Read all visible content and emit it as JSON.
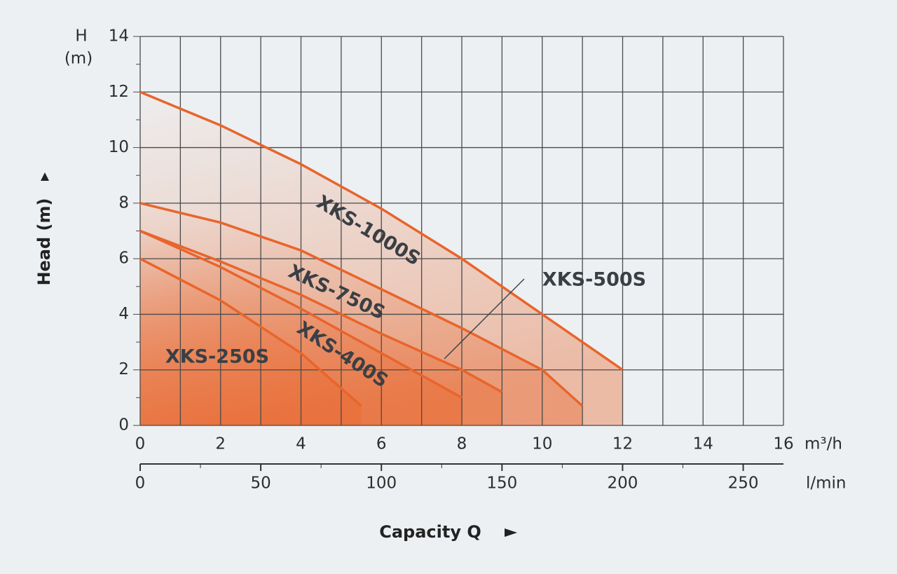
{
  "chart_data": {
    "type": "line",
    "y_label": "Head (m)",
    "y_unit_top": "H",
    "y_unit_bottom": "(m)",
    "x_label": "Capacity Q",
    "x_unit": "m³/h",
    "x2_unit": "l/min",
    "xlim": [
      0,
      16
    ],
    "xticks": [
      0,
      2,
      4,
      6,
      8,
      10,
      12,
      14,
      16
    ],
    "x2lim": [
      0,
      266.7
    ],
    "x2ticks": [
      0,
      50,
      100,
      150,
      200,
      250
    ],
    "ylim": [
      0,
      14
    ],
    "yticks": [
      0,
      2,
      4,
      6,
      8,
      10,
      12,
      14
    ],
    "grid": true,
    "color": "#e8652b",
    "series": [
      {
        "name": "XKS-1000S",
        "x": [
          0,
          2,
          4,
          6,
          8,
          10,
          12
        ],
        "values": [
          12,
          10.8,
          9.4,
          7.8,
          6,
          4,
          2
        ]
      },
      {
        "name": "XKS-750S",
        "x": [
          0,
          2,
          4,
          6,
          8,
          10,
          11
        ],
        "values": [
          8,
          7.3,
          6.3,
          4.9,
          3.5,
          2,
          0.7
        ]
      },
      {
        "name": "XKS-500S",
        "x": [
          0,
          2,
          4,
          6,
          8,
          9
        ],
        "values": [
          7,
          5.9,
          4.7,
          3.3,
          2,
          1.2
        ]
      },
      {
        "name": "XKS-400S",
        "x": [
          0,
          2,
          4,
          6,
          8
        ],
        "values": [
          7,
          5.7,
          4.2,
          2.6,
          1
        ]
      },
      {
        "name": "XKS-250S",
        "x": [
          0,
          2,
          4,
          5.5
        ],
        "values": [
          6,
          4.5,
          2.6,
          0.7
        ]
      }
    ]
  }
}
